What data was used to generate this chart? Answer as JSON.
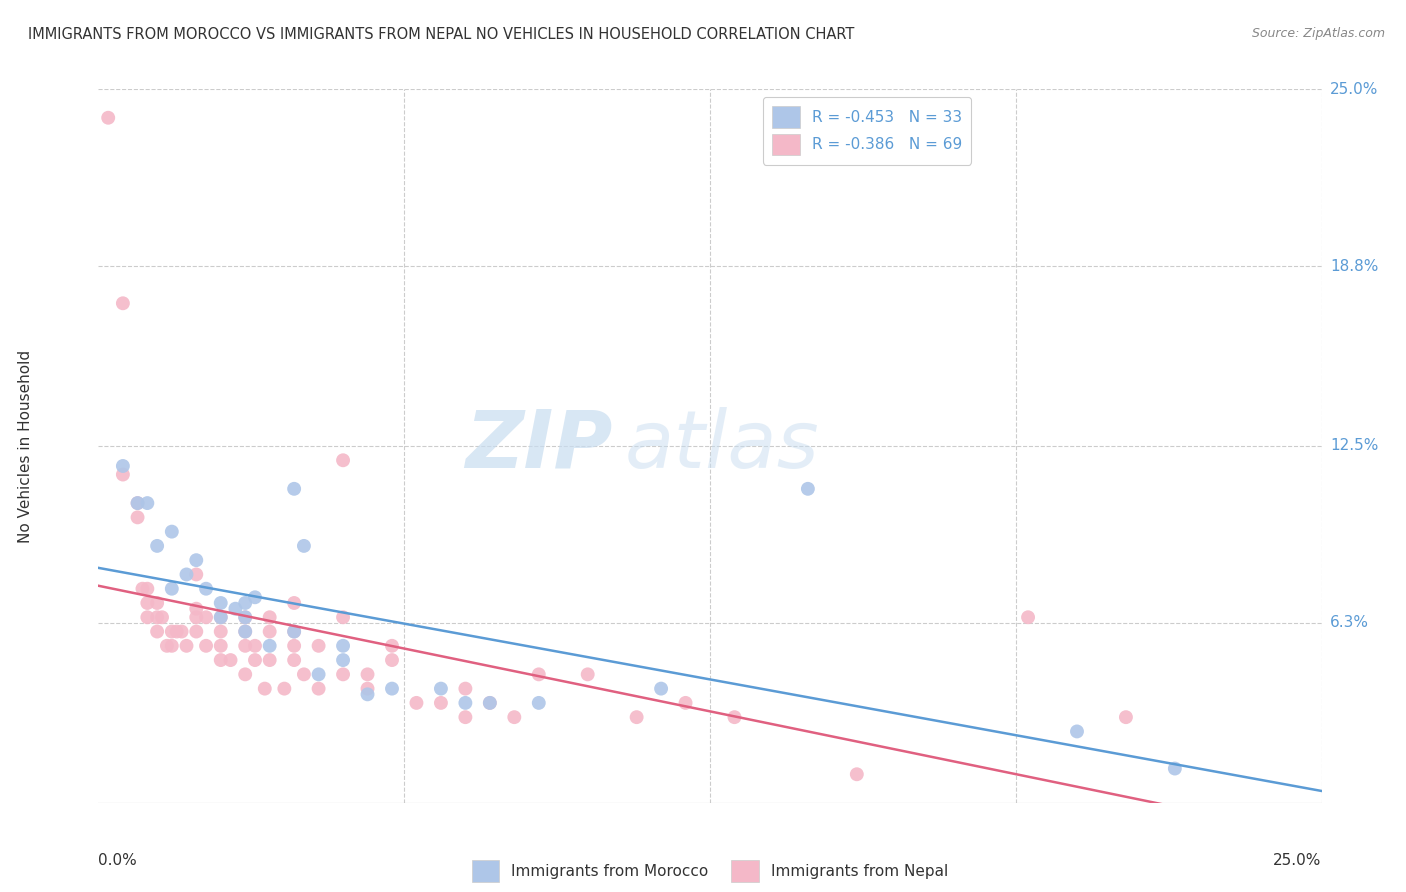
{
  "title": "IMMIGRANTS FROM MOROCCO VS IMMIGRANTS FROM NEPAL NO VEHICLES IN HOUSEHOLD CORRELATION CHART",
  "source": "Source: ZipAtlas.com",
  "ylabel": "No Vehicles in Household",
  "legend1_R": "R = -0.453",
  "legend1_N": "N = 33",
  "legend2_R": "R = -0.386",
  "legend2_N": "N = 69",
  "watermark_zip": "ZIP",
  "watermark_atlas": "atlas",
  "morocco_color": "#aec6e8",
  "nepal_color": "#f4b8c8",
  "morocco_line_color": "#5b9bd5",
  "nepal_line_color": "#e06080",
  "morocco_scatter": [
    [
      0.005,
      0.118
    ],
    [
      0.008,
      0.105
    ],
    [
      0.01,
      0.105
    ],
    [
      0.012,
      0.09
    ],
    [
      0.015,
      0.095
    ],
    [
      0.015,
      0.075
    ],
    [
      0.018,
      0.08
    ],
    [
      0.02,
      0.085
    ],
    [
      0.022,
      0.075
    ],
    [
      0.025,
      0.07
    ],
    [
      0.025,
      0.065
    ],
    [
      0.028,
      0.068
    ],
    [
      0.03,
      0.06
    ],
    [
      0.03,
      0.065
    ],
    [
      0.03,
      0.07
    ],
    [
      0.032,
      0.072
    ],
    [
      0.035,
      0.055
    ],
    [
      0.04,
      0.06
    ],
    [
      0.04,
      0.11
    ],
    [
      0.042,
      0.09
    ],
    [
      0.045,
      0.045
    ],
    [
      0.05,
      0.05
    ],
    [
      0.05,
      0.055
    ],
    [
      0.055,
      0.038
    ],
    [
      0.06,
      0.04
    ],
    [
      0.07,
      0.04
    ],
    [
      0.075,
      0.035
    ],
    [
      0.08,
      0.035
    ],
    [
      0.09,
      0.035
    ],
    [
      0.115,
      0.04
    ],
    [
      0.145,
      0.11
    ],
    [
      0.2,
      0.025
    ],
    [
      0.22,
      0.012
    ]
  ],
  "nepal_scatter": [
    [
      0.002,
      0.24
    ],
    [
      0.005,
      0.175
    ],
    [
      0.005,
      0.115
    ],
    [
      0.008,
      0.105
    ],
    [
      0.008,
      0.1
    ],
    [
      0.009,
      0.075
    ],
    [
      0.01,
      0.075
    ],
    [
      0.01,
      0.07
    ],
    [
      0.01,
      0.065
    ],
    [
      0.012,
      0.07
    ],
    [
      0.012,
      0.065
    ],
    [
      0.012,
      0.06
    ],
    [
      0.013,
      0.065
    ],
    [
      0.014,
      0.055
    ],
    [
      0.015,
      0.06
    ],
    [
      0.015,
      0.055
    ],
    [
      0.016,
      0.06
    ],
    [
      0.017,
      0.06
    ],
    [
      0.018,
      0.055
    ],
    [
      0.02,
      0.08
    ],
    [
      0.02,
      0.068
    ],
    [
      0.02,
      0.065
    ],
    [
      0.02,
      0.06
    ],
    [
      0.022,
      0.065
    ],
    [
      0.022,
      0.055
    ],
    [
      0.025,
      0.065
    ],
    [
      0.025,
      0.06
    ],
    [
      0.025,
      0.055
    ],
    [
      0.025,
      0.05
    ],
    [
      0.027,
      0.05
    ],
    [
      0.03,
      0.065
    ],
    [
      0.03,
      0.06
    ],
    [
      0.03,
      0.055
    ],
    [
      0.03,
      0.045
    ],
    [
      0.032,
      0.055
    ],
    [
      0.032,
      0.05
    ],
    [
      0.034,
      0.04
    ],
    [
      0.035,
      0.065
    ],
    [
      0.035,
      0.06
    ],
    [
      0.035,
      0.05
    ],
    [
      0.038,
      0.04
    ],
    [
      0.04,
      0.07
    ],
    [
      0.04,
      0.06
    ],
    [
      0.04,
      0.055
    ],
    [
      0.04,
      0.05
    ],
    [
      0.042,
      0.045
    ],
    [
      0.045,
      0.055
    ],
    [
      0.045,
      0.04
    ],
    [
      0.05,
      0.12
    ],
    [
      0.05,
      0.065
    ],
    [
      0.05,
      0.045
    ],
    [
      0.055,
      0.045
    ],
    [
      0.055,
      0.04
    ],
    [
      0.06,
      0.055
    ],
    [
      0.06,
      0.05
    ],
    [
      0.065,
      0.035
    ],
    [
      0.07,
      0.035
    ],
    [
      0.075,
      0.04
    ],
    [
      0.075,
      0.03
    ],
    [
      0.08,
      0.035
    ],
    [
      0.085,
      0.03
    ],
    [
      0.09,
      0.045
    ],
    [
      0.1,
      0.045
    ],
    [
      0.11,
      0.03
    ],
    [
      0.12,
      0.035
    ],
    [
      0.13,
      0.03
    ],
    [
      0.155,
      0.01
    ],
    [
      0.19,
      0.065
    ],
    [
      0.21,
      0.03
    ]
  ],
  "xmin": 0.0,
  "xmax": 0.25,
  "ymin": 0.0,
  "ymax": 0.25,
  "y_ticks": [
    0.0,
    0.063,
    0.125,
    0.188,
    0.25
  ],
  "y_tick_labels": [
    "",
    "6.3%",
    "12.5%",
    "18.8%",
    "25.0%"
  ],
  "x_ticks": [
    0.0,
    0.0625,
    0.125,
    0.1875,
    0.25
  ]
}
